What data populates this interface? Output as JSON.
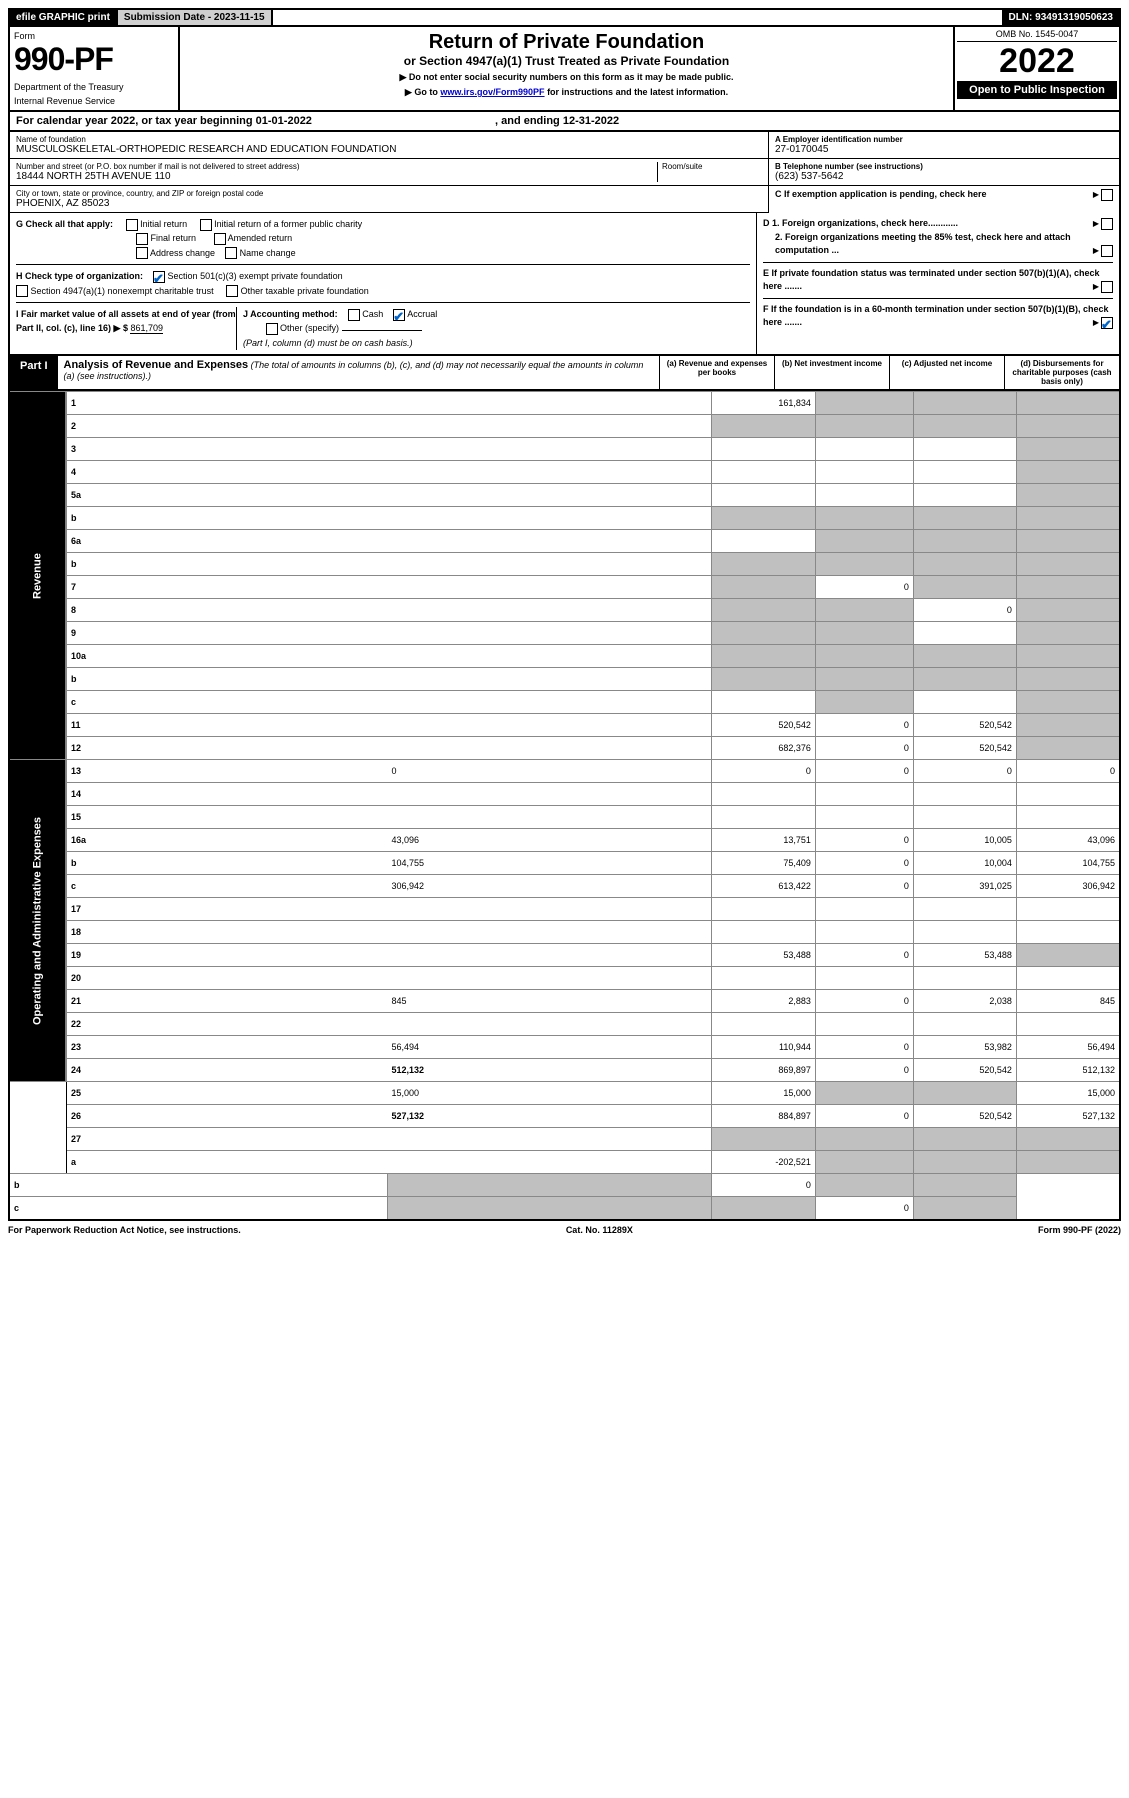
{
  "top": {
    "efile": "efile GRAPHIC print",
    "sub_date_label": "Submission Date - 2023-11-15",
    "dln": "DLN: 93491319050623"
  },
  "header": {
    "form_word": "Form",
    "form_number": "990-PF",
    "dept": "Department of the Treasury",
    "irs": "Internal Revenue Service",
    "title": "Return of Private Foundation",
    "subtitle": "or Section 4947(a)(1) Trust Treated as Private Foundation",
    "note1": "▶ Do not enter social security numbers on this form as it may be made public.",
    "note2_pre": "▶ Go to ",
    "note2_link": "www.irs.gov/Form990PF",
    "note2_post": " for instructions and the latest information.",
    "omb": "OMB No. 1545-0047",
    "year": "2022",
    "open": "Open to Public Inspection"
  },
  "calendar": {
    "text_pre": "For calendar year 2022, or tax year beginning ",
    "begin": "01-01-2022",
    "mid": " , and ending ",
    "end": "12-31-2022"
  },
  "info": {
    "name_label": "Name of foundation",
    "name": "MUSCULOSKELETAL-ORTHOPEDIC RESEARCH AND EDUCATION FOUNDATION",
    "addr_label": "Number and street (or P.O. box number if mail is not delivered to street address)",
    "addr": "18444 NORTH 25TH AVENUE 110",
    "room_label": "Room/suite",
    "city_label": "City or town, state or province, country, and ZIP or foreign postal code",
    "city": "PHOENIX, AZ  85023",
    "a_label": "A Employer identification number",
    "ein": "27-0170045",
    "b_label": "B Telephone number (see instructions)",
    "phone": "(623) 537-5642",
    "c_label": "C If exemption application is pending, check here"
  },
  "checks": {
    "g_label": "G Check all that apply:",
    "g_initial": "Initial return",
    "g_initial_former": "Initial return of a former public charity",
    "g_final": "Final return",
    "g_amended": "Amended return",
    "g_addr": "Address change",
    "g_name": "Name change",
    "h_label": "H Check type of organization:",
    "h_501c3": "Section 501(c)(3) exempt private foundation",
    "h_4947": "Section 4947(a)(1) nonexempt charitable trust",
    "h_other": "Other taxable private foundation",
    "i_label": "I Fair market value of all assets at end of year (from Part II, col. (c), line 16) ▶ $",
    "i_value": "861,709",
    "j_label": "J Accounting method:",
    "j_cash": "Cash",
    "j_accrual": "Accrual",
    "j_other": "Other (specify)",
    "j_note": "(Part I, column (d) must be on cash basis.)",
    "d1": "D 1. Foreign organizations, check here............",
    "d2": "2. Foreign organizations meeting the 85% test, check here and attach computation ...",
    "e": "E  If private foundation status was terminated under section 507(b)(1)(A), check here .......",
    "f": "F  If the foundation is in a 60-month termination under section 507(b)(1)(B), check here ......."
  },
  "part1": {
    "label": "Part I",
    "title": "Analysis of Revenue and Expenses",
    "title_note": " (The total of amounts in columns (b), (c), and (d) may not necessarily equal the amounts in column (a) (see instructions).)",
    "col_a": "(a)   Revenue and expenses per books",
    "col_b": "(b)   Net investment income",
    "col_c": "(c)   Adjusted net income",
    "col_d": "(d)   Disbursements for charitable purposes (cash basis only)"
  },
  "side": {
    "revenue": "Revenue",
    "expenses": "Operating and Administrative Expenses"
  },
  "rows": [
    {
      "n": "1",
      "d": "",
      "a": "161,834",
      "b": "",
      "c": "",
      "sb": true,
      "sc": true,
      "sd": true
    },
    {
      "n": "2",
      "d": "",
      "a": "",
      "b": "",
      "c": "",
      "sa": true,
      "sb": true,
      "sc": true,
      "sd": true
    },
    {
      "n": "3",
      "d": "",
      "a": "",
      "b": "",
      "c": "",
      "sd": true
    },
    {
      "n": "4",
      "d": "",
      "a": "",
      "b": "",
      "c": "",
      "sd": true
    },
    {
      "n": "5a",
      "d": "",
      "a": "",
      "b": "",
      "c": "",
      "sd": true
    },
    {
      "n": "b",
      "d": "",
      "a": "",
      "b": "",
      "c": "",
      "sa": true,
      "sb": true,
      "sc": true,
      "sd": true
    },
    {
      "n": "6a",
      "d": "",
      "a": "",
      "b": "",
      "c": "",
      "sb": true,
      "sc": true,
      "sd": true
    },
    {
      "n": "b",
      "d": "",
      "a": "",
      "b": "",
      "c": "",
      "sa": true,
      "sb": true,
      "sc": true,
      "sd": true
    },
    {
      "n": "7",
      "d": "",
      "a": "",
      "b": "0",
      "c": "",
      "sa": true,
      "sc": true,
      "sd": true
    },
    {
      "n": "8",
      "d": "",
      "a": "",
      "b": "",
      "c": "0",
      "sa": true,
      "sb": true,
      "sd": true
    },
    {
      "n": "9",
      "d": "",
      "a": "",
      "b": "",
      "c": "",
      "sa": true,
      "sb": true,
      "sd": true
    },
    {
      "n": "10a",
      "d": "",
      "a": "",
      "b": "",
      "c": "",
      "sa": true,
      "sb": true,
      "sc": true,
      "sd": true
    },
    {
      "n": "b",
      "d": "",
      "a": "",
      "b": "",
      "c": "",
      "sa": true,
      "sb": true,
      "sc": true,
      "sd": true
    },
    {
      "n": "c",
      "d": "",
      "a": "",
      "b": "",
      "c": "",
      "sb": true,
      "sd": true
    },
    {
      "n": "11",
      "d": "",
      "a": "520,542",
      "b": "0",
      "c": "520,542",
      "sd": true
    },
    {
      "n": "12",
      "d": "",
      "a": "682,376",
      "b": "0",
      "c": "520,542",
      "sd": true,
      "bold": true
    },
    {
      "n": "13",
      "d": "0",
      "a": "0",
      "b": "0",
      "c": "0"
    },
    {
      "n": "14",
      "d": "",
      "a": "",
      "b": "",
      "c": ""
    },
    {
      "n": "15",
      "d": "",
      "a": "",
      "b": "",
      "c": ""
    },
    {
      "n": "16a",
      "d": "43,096",
      "a": "13,751",
      "b": "0",
      "c": "10,005"
    },
    {
      "n": "b",
      "d": "104,755",
      "a": "75,409",
      "b": "0",
      "c": "10,004"
    },
    {
      "n": "c",
      "d": "306,942",
      "a": "613,422",
      "b": "0",
      "c": "391,025"
    },
    {
      "n": "17",
      "d": "",
      "a": "",
      "b": "",
      "c": ""
    },
    {
      "n": "18",
      "d": "",
      "a": "",
      "b": "",
      "c": ""
    },
    {
      "n": "19",
      "d": "",
      "a": "53,488",
      "b": "0",
      "c": "53,488",
      "sd": true
    },
    {
      "n": "20",
      "d": "",
      "a": "",
      "b": "",
      "c": ""
    },
    {
      "n": "21",
      "d": "845",
      "a": "2,883",
      "b": "0",
      "c": "2,038"
    },
    {
      "n": "22",
      "d": "",
      "a": "",
      "b": "",
      "c": ""
    },
    {
      "n": "23",
      "d": "56,494",
      "a": "110,944",
      "b": "0",
      "c": "53,982"
    },
    {
      "n": "24",
      "d": "512,132",
      "a": "869,897",
      "b": "0",
      "c": "520,542",
      "bold": true
    },
    {
      "n": "25",
      "d": "15,000",
      "a": "15,000",
      "b": "",
      "c": "",
      "sb": true,
      "sc": true
    },
    {
      "n": "26",
      "d": "527,132",
      "a": "884,897",
      "b": "0",
      "c": "520,542",
      "bold": true
    },
    {
      "n": "27",
      "d": "",
      "a": "",
      "b": "",
      "c": "",
      "sa": true,
      "sb": true,
      "sc": true,
      "sd": true
    },
    {
      "n": "a",
      "d": "",
      "a": "-202,521",
      "b": "",
      "c": "",
      "sb": true,
      "sc": true,
      "sd": true,
      "bold": true
    },
    {
      "n": "b",
      "d": "",
      "a": "",
      "b": "0",
      "c": "",
      "sa": true,
      "sc": true,
      "sd": true,
      "bold": true
    },
    {
      "n": "c",
      "d": "",
      "a": "",
      "b": "",
      "c": "0",
      "sa": true,
      "sb": true,
      "sd": true,
      "bold": true
    }
  ],
  "footer": {
    "left": "For Paperwork Reduction Act Notice, see instructions.",
    "mid": "Cat. No. 11289X",
    "right": "Form 990-PF (2022)"
  },
  "colors": {
    "black": "#000000",
    "white": "#ffffff",
    "gray_bar": "#d0d0d0",
    "shaded": "#c0c0c0",
    "check_blue": "#0066cc",
    "link": "#0000cc"
  }
}
